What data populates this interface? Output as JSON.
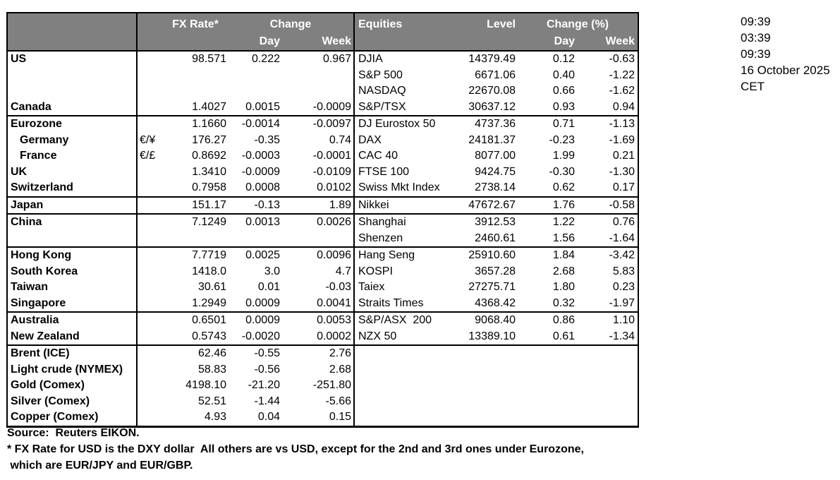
{
  "header": {
    "fx_rate": "FX Rate*",
    "change": "Change",
    "day": "Day",
    "week": "Week",
    "equities": "Equities",
    "level": "Level",
    "change_pct": "Change (%)"
  },
  "timestamps": {
    "lines": [
      "09:39",
      "03:39",
      "09:39",
      "16 October 2025",
      "CET"
    ]
  },
  "footer": {
    "source": "Source:  Reuters EIKON.",
    "footnote_line1": "* FX Rate for USD is the DXY dollar  All others are vs USD, except for the 2nd and 3rd ones under Eurozone,",
    "footnote_line2": " which are EUR/JPY and EUR/GBP."
  },
  "colors": {
    "header_bg": "#808080",
    "header_text": "#ffffff",
    "border": "#000000",
    "text": "#000000",
    "background": "#ffffff"
  },
  "groups": [
    {
      "rows": [
        {
          "name": "US",
          "rate": "98.571",
          "day": "0.222",
          "week": "0.967",
          "eq": "DJIA",
          "level": "14379.49",
          "eday": "0.12",
          "eweek": "-0.63"
        },
        {
          "eq": "S&P 500",
          "level": "6671.06",
          "eday": "0.40",
          "eweek": "-1.22"
        },
        {
          "eq": "NASDAQ",
          "level": "22670.08",
          "eday": "0.66",
          "eweek": "-1.62"
        },
        {
          "name": "Canada",
          "rate": "1.4027",
          "day": "0.0015",
          "week": "-0.0009",
          "eq": "S&P/TSX",
          "level": "30637.12",
          "eday": "0.93",
          "eweek": "0.94"
        }
      ]
    },
    {
      "rows": [
        {
          "name": "Eurozone",
          "rate": "1.1660",
          "day": "-0.0014",
          "week": "-0.0097",
          "eq": "DJ Eurostox 50",
          "level": "4737.36",
          "eday": "0.71",
          "eweek": "-1.13"
        },
        {
          "name": "Germany",
          "indent": true,
          "pair": "€/¥",
          "rate": "176.27",
          "day": "-0.35",
          "week": "0.74",
          "eq": "DAX",
          "level": "24181.37",
          "eday": "-0.23",
          "eweek": "-1.69"
        },
        {
          "name": "France",
          "indent": true,
          "pair": "€/£",
          "rate": "0.8692",
          "day": "-0.0003",
          "week": "-0.0001",
          "eq": "CAC 40",
          "level": "8077.00",
          "eday": "1.99",
          "eweek": "0.21"
        },
        {
          "name": "UK",
          "rate": "1.3410",
          "day": "-0.0009",
          "week": "-0.0109",
          "eq": "FTSE 100",
          "level": "9424.75",
          "eday": "-0.30",
          "eweek": "-1.30"
        },
        {
          "name": "Switzerland",
          "rate": "0.7958",
          "day": "0.0008",
          "week": "0.0102",
          "eq": "Swiss Mkt Index",
          "level": "2738.14",
          "eday": "0.62",
          "eweek": "0.17"
        }
      ]
    },
    {
      "rows": [
        {
          "name": "Japan",
          "rate": "151.17",
          "day": "-0.13",
          "week": "1.89",
          "eq": "Nikkei",
          "level": "47672.67",
          "eday": "1.76",
          "eweek": "-0.58"
        }
      ]
    },
    {
      "rows": [
        {
          "name": "China",
          "rate": "7.1249",
          "day": "0.0013",
          "week": "0.0026",
          "eq": "Shanghai",
          "level": "3912.53",
          "eday": "1.22",
          "eweek": "0.76"
        },
        {
          "eq": "Shenzen",
          "level": "2460.61",
          "eday": "1.56",
          "eweek": "-1.64"
        }
      ]
    },
    {
      "rows": [
        {
          "name": "Hong Kong",
          "rate": "7.7719",
          "day": "0.0025",
          "week": "0.0096",
          "eq": "Hang Seng",
          "level": "25910.60",
          "eday": "1.84",
          "eweek": "-3.42"
        },
        {
          "name": "South Korea",
          "rate": "1418.0",
          "day": "3.0",
          "week": "4.7",
          "eq": "KOSPI",
          "level": "3657.28",
          "eday": "2.68",
          "eweek": "5.83"
        },
        {
          "name": "Taiwan",
          "rate": "30.61",
          "day": "0.01",
          "week": "-0.03",
          "eq": "Taiex",
          "level": "27275.71",
          "eday": "1.80",
          "eweek": "0.23"
        },
        {
          "name": "Singapore",
          "rate": "1.2949",
          "day": "0.0009",
          "week": "0.0041",
          "eq": "Straits Times",
          "level": "4368.42",
          "eday": "0.32",
          "eweek": "-1.97"
        }
      ]
    },
    {
      "rows": [
        {
          "name": "Australia",
          "rate": "0.6501",
          "day": "0.0009",
          "week": "0.0053",
          "eq": "S&P/ASX  200",
          "level": "9068.40",
          "eday": "0.86",
          "eweek": "1.10"
        },
        {
          "name": "New Zealand",
          "rate": "0.5743",
          "day": "-0.0020",
          "week": "0.0002",
          "eq": "NZX 50",
          "level": "13389.10",
          "eday": "0.61",
          "eweek": "-1.34"
        }
      ]
    },
    {
      "rows": [
        {
          "name": "Brent (ICE)",
          "rate": "62.46",
          "day": "-0.55",
          "week": "2.76"
        },
        {
          "name": "Light crude (NYMEX)",
          "rate": "58.83",
          "day": "-0.56",
          "week": "2.68"
        },
        {
          "name": "Gold (Comex)",
          "rate": "4198.10",
          "day": "-21.20",
          "week": "-251.80"
        },
        {
          "name": "Silver (Comex)",
          "rate": "52.51",
          "day": "-1.44",
          "week": "-5.66"
        },
        {
          "name": "Copper (Comex)",
          "rate": "4.93",
          "day": "0.04",
          "week": "0.15"
        }
      ]
    }
  ]
}
